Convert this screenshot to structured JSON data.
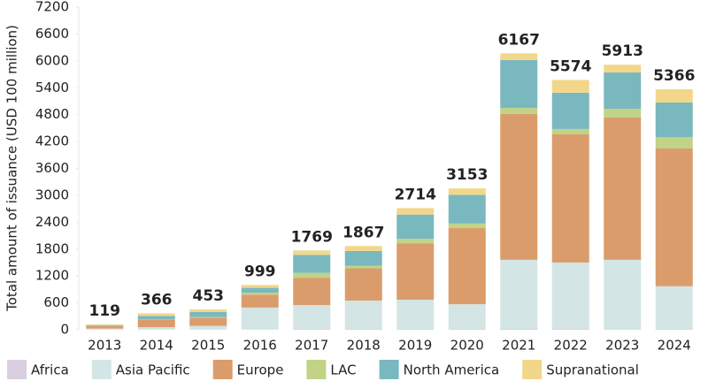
{
  "chart_data": {
    "type": "stacked_bar",
    "y_label": "Total amount of issuance (USD 100 million)",
    "categories": [
      "2013",
      "2014",
      "2015",
      "2016",
      "2017",
      "2018",
      "2019",
      "2020",
      "2021",
      "2022",
      "2023",
      "2024"
    ],
    "series": [
      {
        "name": "Africa",
        "color": "#d9cfe1",
        "values": [
          5,
          6,
          5,
          5,
          10,
          10,
          10,
          10,
          20,
          25,
          15,
          10
        ]
      },
      {
        "name": "Asia Pacific",
        "color": "#d3e5e4",
        "values": [
          20,
          50,
          80,
          490,
          540,
          640,
          660,
          560,
          1540,
          1475,
          1545,
          960
        ]
      },
      {
        "name": "Europe",
        "color": "#db9c6c",
        "values": [
          60,
          170,
          180,
          290,
          610,
          720,
          1260,
          1700,
          3255,
          2860,
          3175,
          3075
        ]
      },
      {
        "name": "LAC",
        "color": "#c0d386",
        "values": [
          5,
          10,
          20,
          40,
          110,
          60,
          100,
          100,
          135,
          120,
          195,
          255
        ]
      },
      {
        "name": "North America",
        "color": "#7ab8bf",
        "values": [
          15,
          70,
          110,
          110,
          400,
          327,
          540,
          640,
          1070,
          810,
          810,
          770
        ]
      },
      {
        "name": "Supranational",
        "color": "#f2d78a",
        "values": [
          14,
          60,
          58,
          64,
          99,
          110,
          144,
          143,
          147,
          284,
          173,
          296
        ]
      }
    ],
    "totals": [
      119,
      366,
      453,
      999,
      1769,
      1867,
      2714,
      3153,
      6167,
      5574,
      5913,
      5366
    ],
    "ylim": [
      0,
      7200
    ],
    "yticks": [
      0,
      600,
      1200,
      1800,
      2400,
      3000,
      3600,
      4200,
      4800,
      5400,
      6000,
      6600,
      7200
    ]
  }
}
